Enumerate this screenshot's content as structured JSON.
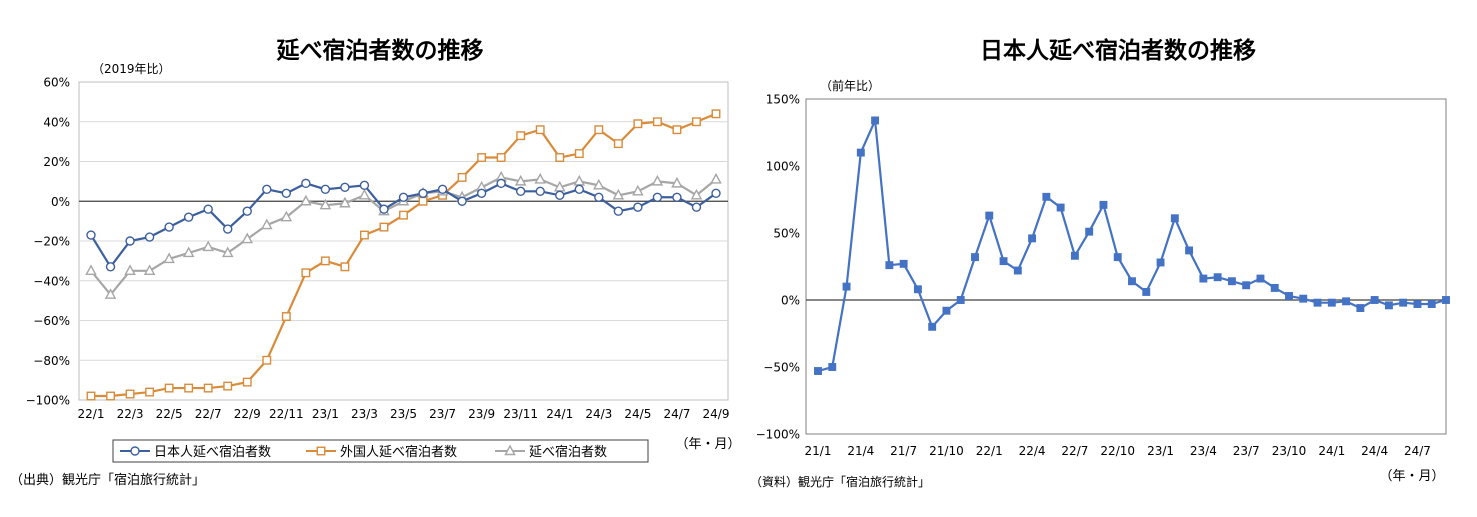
{
  "chart_data": [
    {
      "type": "line",
      "title": "延べ宿泊者数の推移",
      "ylabel": "（2019年比）",
      "xlabel": "（年・月）",
      "source": "（出典）観光庁「宿泊旅行統計」",
      "ylim": [
        -100,
        60
      ],
      "yticks": [
        "60%",
        "40%",
        "20%",
        "0%",
        "−20%",
        "−40%",
        "−60%",
        "−80%",
        "−100%"
      ],
      "ytick_values": [
        60,
        40,
        20,
        0,
        -20,
        -40,
        -60,
        -80,
        -100
      ],
      "categories": [
        "22/1",
        "22/2",
        "22/3",
        "22/4",
        "22/5",
        "22/6",
        "22/7",
        "22/8",
        "22/9",
        "22/10",
        "22/11",
        "22/12",
        "23/1",
        "23/2",
        "23/3",
        "23/4",
        "23/5",
        "23/6",
        "23/7",
        "23/8",
        "23/9",
        "23/10",
        "23/11",
        "23/12",
        "24/1",
        "24/2",
        "24/3",
        "24/4",
        "24/5",
        "24/6",
        "24/7",
        "24/8",
        "24/9"
      ],
      "xtick_labels": [
        "22/1",
        "22/3",
        "22/5",
        "22/7",
        "22/9",
        "22/11",
        "23/1",
        "23/3",
        "23/5",
        "23/7",
        "23/9",
        "23/11",
        "24/1",
        "24/3",
        "24/5",
        "24/7",
        "24/9"
      ],
      "grid": true,
      "legend_position": "bottom",
      "series": [
        {
          "name": "日本人延べ宿泊者数",
          "color": "#3c5f9e",
          "marker": "circle",
          "values": [
            -17,
            -33,
            -20,
            -18,
            -13,
            -8,
            -4,
            -14,
            -5,
            6,
            4,
            9,
            6,
            7,
            8,
            -4,
            2,
            4,
            6,
            0,
            4,
            9,
            5,
            5,
            3,
            6,
            2,
            -5,
            -3,
            2,
            2,
            -3,
            4
          ]
        },
        {
          "name": "外国人延べ宿泊者数",
          "color": "#d98b3a",
          "marker": "square",
          "values": [
            -98,
            -98,
            -97,
            -96,
            -94,
            -94,
            -94,
            -93,
            -91,
            -80,
            -58,
            -36,
            -30,
            -33,
            -17,
            -13,
            -7,
            0,
            3,
            12,
            22,
            22,
            33,
            36,
            22,
            24,
            36,
            29,
            39,
            40,
            36,
            40,
            44
          ]
        },
        {
          "name": "延べ宿泊者数",
          "color": "#a6a6a6",
          "marker": "triangle",
          "values": [
            -35,
            -47,
            -35,
            -35,
            -29,
            -26,
            -23,
            -26,
            -19,
            -12,
            -8,
            0,
            -2,
            -1,
            3,
            -5,
            0,
            4,
            5,
            2,
            7,
            12,
            10,
            11,
            7,
            10,
            8,
            3,
            5,
            10,
            9,
            3,
            11
          ]
        }
      ]
    },
    {
      "type": "line",
      "title": "日本人延べ宿泊者数の推移",
      "ylabel": "（前年比）",
      "xlabel": "（年・月）",
      "source": "（資料）観光庁「宿泊旅行統計」",
      "ylim": [
        -100,
        150
      ],
      "yticks": [
        "150%",
        "100%",
        "50%",
        "0%",
        "−50%",
        "−100%"
      ],
      "ytick_values": [
        150,
        100,
        50,
        0,
        -50,
        -100
      ],
      "categories": [
        "21/1",
        "21/2",
        "21/3",
        "21/4",
        "21/5",
        "21/6",
        "21/7",
        "21/8",
        "21/9",
        "21/10",
        "21/11",
        "21/12",
        "22/1",
        "22/2",
        "22/3",
        "22/4",
        "22/5",
        "22/6",
        "22/7",
        "22/8",
        "22/9",
        "22/10",
        "22/11",
        "22/12",
        "23/1",
        "23/2",
        "23/3",
        "23/4",
        "23/5",
        "23/6",
        "23/7",
        "23/8",
        "23/9",
        "23/10",
        "23/11",
        "23/12",
        "24/1",
        "24/2",
        "24/3",
        "24/4",
        "24/5",
        "24/6",
        "24/7",
        "24/8",
        "24/9"
      ],
      "xtick_labels": [
        "21/1",
        "21/4",
        "21/7",
        "21/10",
        "22/1",
        "22/4",
        "22/7",
        "22/10",
        "23/1",
        "23/4",
        "23/7",
        "23/10",
        "24/1",
        "24/4",
        "24/7"
      ],
      "grid": false,
      "series": [
        {
          "name": "",
          "color": "#4472c4",
          "marker": "square",
          "values": [
            -53,
            -50,
            10,
            110,
            134,
            26,
            27,
            8,
            -20,
            -8,
            0,
            32,
            63,
            29,
            22,
            46,
            77,
            69,
            33,
            51,
            71,
            32,
            14,
            6,
            28,
            61,
            37,
            16,
            17,
            14,
            11,
            16,
            9,
            3,
            1,
            -2,
            -2,
            -1,
            -6,
            0,
            -4,
            -2,
            -3,
            -3,
            0
          ]
        }
      ]
    }
  ]
}
